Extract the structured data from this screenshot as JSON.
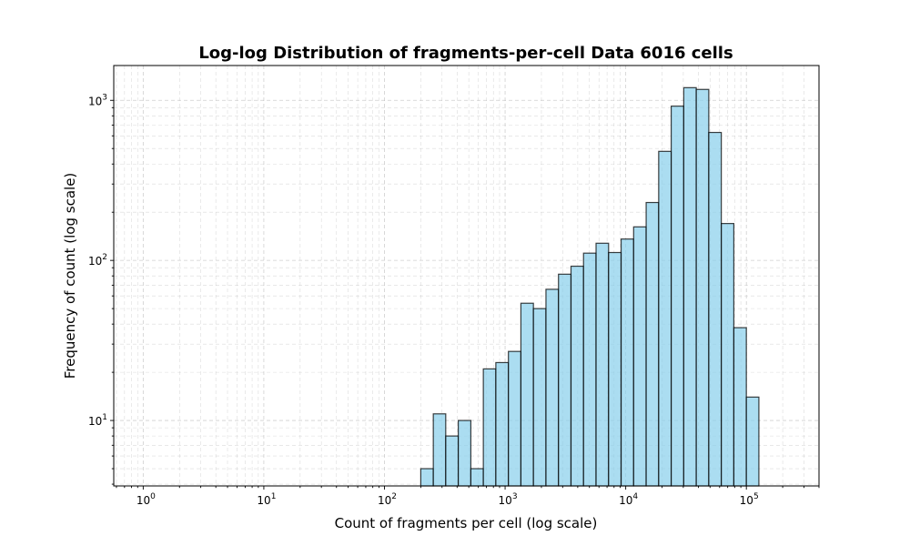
{
  "chart_data": {
    "type": "bar",
    "title": "Log-log Distribution of fragments-per-cell Data 6016 cells",
    "xlabel": "Count of fragments per cell (log scale)",
    "ylabel": "Frequency of count (log scale)",
    "x_scale": "log",
    "y_scale": "log",
    "xlim": [
      0.57,
      400000
    ],
    "ylim": [
      3.9,
      1650
    ],
    "grid": true,
    "x_ticks": [
      {
        "base": "10",
        "exp": "0",
        "value": 1
      },
      {
        "base": "10",
        "exp": "1",
        "value": 10
      },
      {
        "base": "10",
        "exp": "2",
        "value": 100
      },
      {
        "base": "10",
        "exp": "3",
        "value": 1000
      },
      {
        "base": "10",
        "exp": "4",
        "value": 10000
      },
      {
        "base": "10",
        "exp": "5",
        "value": 100000
      }
    ],
    "y_ticks": [
      {
        "base": "10",
        "exp": "1",
        "value": 10
      },
      {
        "base": "10",
        "exp": "2",
        "value": 100
      },
      {
        "base": "10",
        "exp": "3",
        "value": 1000
      }
    ],
    "bins": [
      {
        "x0": 200,
        "x1": 254,
        "count": 5
      },
      {
        "x0": 254,
        "x1": 322,
        "count": 11
      },
      {
        "x0": 322,
        "x1": 409,
        "count": 8
      },
      {
        "x0": 409,
        "x1": 520,
        "count": 10
      },
      {
        "x0": 520,
        "x1": 660,
        "count": 5
      },
      {
        "x0": 660,
        "x1": 838,
        "count": 21
      },
      {
        "x0": 838,
        "x1": 1065,
        "count": 23
      },
      {
        "x0": 1065,
        "x1": 1352,
        "count": 27
      },
      {
        "x0": 1352,
        "x1": 1717,
        "count": 54
      },
      {
        "x0": 1717,
        "x1": 2181,
        "count": 50
      },
      {
        "x0": 2181,
        "x1": 2770,
        "count": 66
      },
      {
        "x0": 2770,
        "x1": 3518,
        "count": 82
      },
      {
        "x0": 3518,
        "x1": 4468,
        "count": 92
      },
      {
        "x0": 4468,
        "x1": 5675,
        "count": 111
      },
      {
        "x0": 5675,
        "x1": 7208,
        "count": 128
      },
      {
        "x0": 7208,
        "x1": 9154,
        "count": 112
      },
      {
        "x0": 9154,
        "x1": 11626,
        "count": 136
      },
      {
        "x0": 11626,
        "x1": 14766,
        "count": 162
      },
      {
        "x0": 14766,
        "x1": 18754,
        "count": 230
      },
      {
        "x0": 18754,
        "x1": 23818,
        "count": 480
      },
      {
        "x0": 23818,
        "x1": 30251,
        "count": 920
      },
      {
        "x0": 30251,
        "x1": 38420,
        "count": 1200
      },
      {
        "x0": 38420,
        "x1": 48795,
        "count": 1170
      },
      {
        "x0": 48795,
        "x1": 61972,
        "count": 630
      },
      {
        "x0": 61972,
        "x1": 78707,
        "count": 170
      },
      {
        "x0": 78707,
        "x1": 99962,
        "count": 38
      },
      {
        "x0": 99962,
        "x1": 126955,
        "count": 14
      }
    ]
  }
}
